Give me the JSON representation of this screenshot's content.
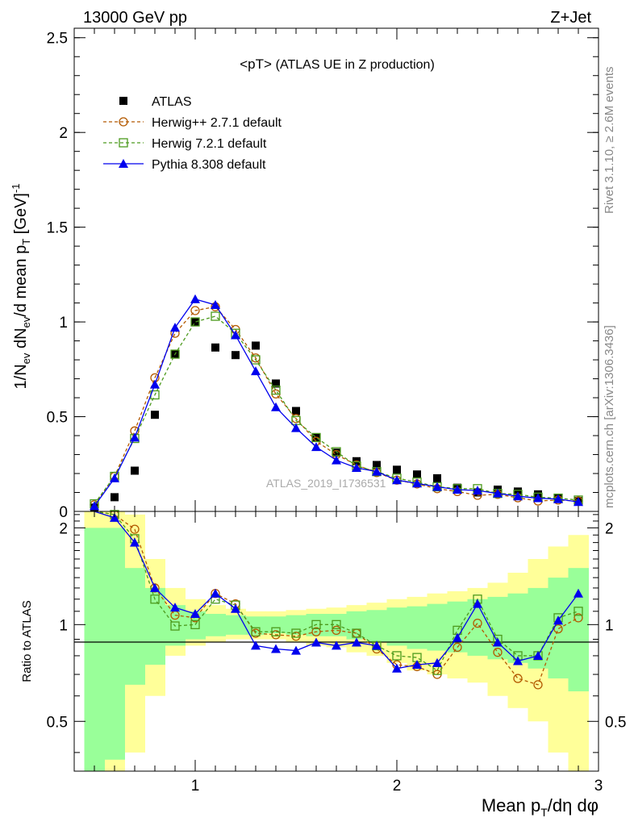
{
  "header": {
    "left": "13000 GeV pp",
    "right": "Z+Jet"
  },
  "side_text": {
    "rivet": "Rivet 3.1.10, ≥ 2.6M events",
    "mcplots": "mcplots.cern.ch [arXiv:1306.3436]"
  },
  "watermark": "ATLAS_2019_I1736531",
  "chart_data": [
    {
      "type": "scatter",
      "title": "<pT> (ATLAS UE in Z production)",
      "ylabel": "1/N_ev dN_ev/d mean p_T [GeV]^-1",
      "xlabel": "",
      "xlim": [
        0.4,
        3.0
      ],
      "ylim": [
        0,
        2.55
      ],
      "x_ticks": [
        "1",
        "2",
        "3"
      ],
      "y_ticks": [
        "0",
        "0.5",
        "1",
        "1.5",
        "2",
        "2.5"
      ],
      "legend_position": "top-left",
      "x": [
        0.5,
        0.6,
        0.7,
        0.8,
        0.9,
        1.0,
        1.1,
        1.2,
        1.3,
        1.4,
        1.5,
        1.6,
        1.7,
        1.8,
        1.9,
        2.0,
        2.1,
        2.2,
        2.3,
        2.4,
        2.5,
        2.6,
        2.7,
        2.8,
        2.9
      ],
      "series": [
        {
          "name": "ATLAS",
          "color": "#000000",
          "marker": "square-filled",
          "values": [
            0.02,
            0.075,
            0.215,
            0.51,
            0.83,
            1.0,
            0.865,
            0.825,
            0.875,
            0.675,
            0.53,
            0.39,
            0.31,
            0.265,
            0.245,
            0.22,
            0.195,
            0.175,
            0.125,
            0.1,
            0.115,
            0.105,
            0.09,
            0.07,
            0.055
          ]
        },
        {
          "name": "Herwig++ 2.7.1 default",
          "color": "#b35900",
          "marker": "circle-open",
          "dash": "4,3",
          "values": [
            0.035,
            0.185,
            0.425,
            0.705,
            0.94,
            1.06,
            1.08,
            0.96,
            0.81,
            0.62,
            0.49,
            0.37,
            0.3,
            0.245,
            0.205,
            0.165,
            0.145,
            0.12,
            0.105,
            0.085,
            0.09,
            0.072,
            0.055,
            0.06,
            0.055
          ]
        },
        {
          "name": "Herwig 7.2.1 default",
          "color": "#4c9a1d",
          "marker": "square-open",
          "dash": "4,3",
          "values": [
            0.04,
            0.185,
            0.385,
            0.615,
            0.83,
            1.0,
            1.03,
            0.94,
            0.8,
            0.64,
            0.48,
            0.39,
            0.315,
            0.24,
            0.21,
            0.175,
            0.155,
            0.13,
            0.12,
            0.12,
            0.095,
            0.09,
            0.075,
            0.07,
            0.06
          ]
        },
        {
          "name": "Pythia 8.308 default",
          "color": "#0000ee",
          "marker": "triangle-filled",
          "values": [
            0.028,
            0.175,
            0.39,
            0.67,
            0.97,
            1.12,
            1.09,
            0.93,
            0.74,
            0.55,
            0.44,
            0.34,
            0.27,
            0.23,
            0.21,
            0.165,
            0.148,
            0.13,
            0.115,
            0.11,
            0.095,
            0.08,
            0.07,
            0.065,
            0.05
          ]
        }
      ]
    },
    {
      "type": "line",
      "ylabel": "Ratio to ATLAS",
      "xlabel": "Mean p_T/dη dφ",
      "xlim": [
        0.4,
        3.0
      ],
      "ylim": [
        0.35,
        2.25
      ],
      "x_ticks": [
        "1",
        "2",
        "3"
      ],
      "y_ticks": [
        "0.5",
        "1",
        "2"
      ],
      "reference_line": 1,
      "bands": {
        "yellow_color": "#ffff99",
        "green_color": "#99ff99",
        "edges": [
          0.45,
          0.55,
          0.65,
          0.75,
          0.85,
          0.95,
          1.05,
          1.15,
          1.25,
          1.35,
          1.45,
          1.55,
          1.65,
          1.75,
          1.85,
          1.95,
          2.05,
          2.15,
          2.25,
          2.35,
          2.45,
          2.55,
          2.65,
          2.75,
          2.85,
          2.95
        ],
        "yellow_lo": [
          0.3,
          0.3,
          0.4,
          0.6,
          0.8,
          0.86,
          0.88,
          0.9,
          0.9,
          0.9,
          0.88,
          0.86,
          0.85,
          0.82,
          0.8,
          0.76,
          0.72,
          0.7,
          0.68,
          0.66,
          0.6,
          0.55,
          0.5,
          0.4,
          0.35
        ],
        "yellow_hi": [
          2.4,
          2.4,
          2.2,
          1.6,
          1.3,
          1.2,
          1.15,
          1.12,
          1.1,
          1.1,
          1.11,
          1.12,
          1.13,
          1.15,
          1.17,
          1.2,
          1.22,
          1.25,
          1.27,
          1.3,
          1.35,
          1.45,
          1.6,
          1.75,
          1.9
        ],
        "green_lo": [
          0.35,
          0.38,
          0.65,
          0.75,
          0.86,
          0.9,
          0.92,
          0.93,
          0.93,
          0.94,
          0.93,
          0.92,
          0.92,
          0.9,
          0.88,
          0.86,
          0.84,
          0.83,
          0.82,
          0.8,
          0.78,
          0.76,
          0.73,
          0.68,
          0.62
        ],
        "green_hi": [
          2.0,
          2.0,
          1.5,
          1.3,
          1.15,
          1.1,
          1.08,
          1.07,
          1.06,
          1.06,
          1.07,
          1.08,
          1.08,
          1.1,
          1.11,
          1.13,
          1.14,
          1.16,
          1.18,
          1.2,
          1.22,
          1.25,
          1.3,
          1.4,
          1.5
        ]
      },
      "x": [
        0.5,
        0.6,
        0.7,
        0.8,
        0.9,
        1.0,
        1.1,
        1.2,
        1.3,
        1.4,
        1.5,
        1.6,
        1.7,
        1.8,
        1.9,
        2.0,
        2.1,
        2.2,
        2.3,
        2.4,
        2.5,
        2.6,
        2.7,
        2.8,
        2.9
      ],
      "series": [
        {
          "name": "Herwig++ 2.7.1 default",
          "color": "#b35900",
          "marker": "circle-open",
          "dash": "4,3",
          "values": [
            2.5,
            2.2,
            1.98,
            1.3,
            1.07,
            1.05,
            1.25,
            1.16,
            0.94,
            0.93,
            0.92,
            0.95,
            0.96,
            0.94,
            0.84,
            0.75,
            0.74,
            0.7,
            0.85,
            1.01,
            0.82,
            0.68,
            0.65,
            0.97,
            1.05
          ]
        },
        {
          "name": "Herwig 7.2.1 default",
          "color": "#4c9a1d",
          "marker": "square-open",
          "dash": "4,3",
          "values": [
            2.5,
            2.2,
            1.85,
            1.2,
            0.99,
            1.0,
            1.2,
            1.15,
            0.95,
            0.95,
            0.94,
            1.0,
            1.0,
            0.94,
            0.86,
            0.8,
            0.79,
            0.72,
            0.96,
            1.2,
            0.9,
            0.8,
            0.8,
            1.05,
            1.1
          ]
        },
        {
          "name": "Pythia 8.308 default",
          "color": "#0000ee",
          "marker": "triangle-filled",
          "values": [
            2.5,
            2.15,
            1.8,
            1.3,
            1.13,
            1.08,
            1.25,
            1.12,
            0.86,
            0.84,
            0.83,
            0.88,
            0.86,
            0.88,
            0.86,
            0.73,
            0.75,
            0.76,
            0.91,
            1.16,
            0.88,
            0.77,
            0.8,
            1.03,
            1.25
          ]
        }
      ]
    }
  ]
}
